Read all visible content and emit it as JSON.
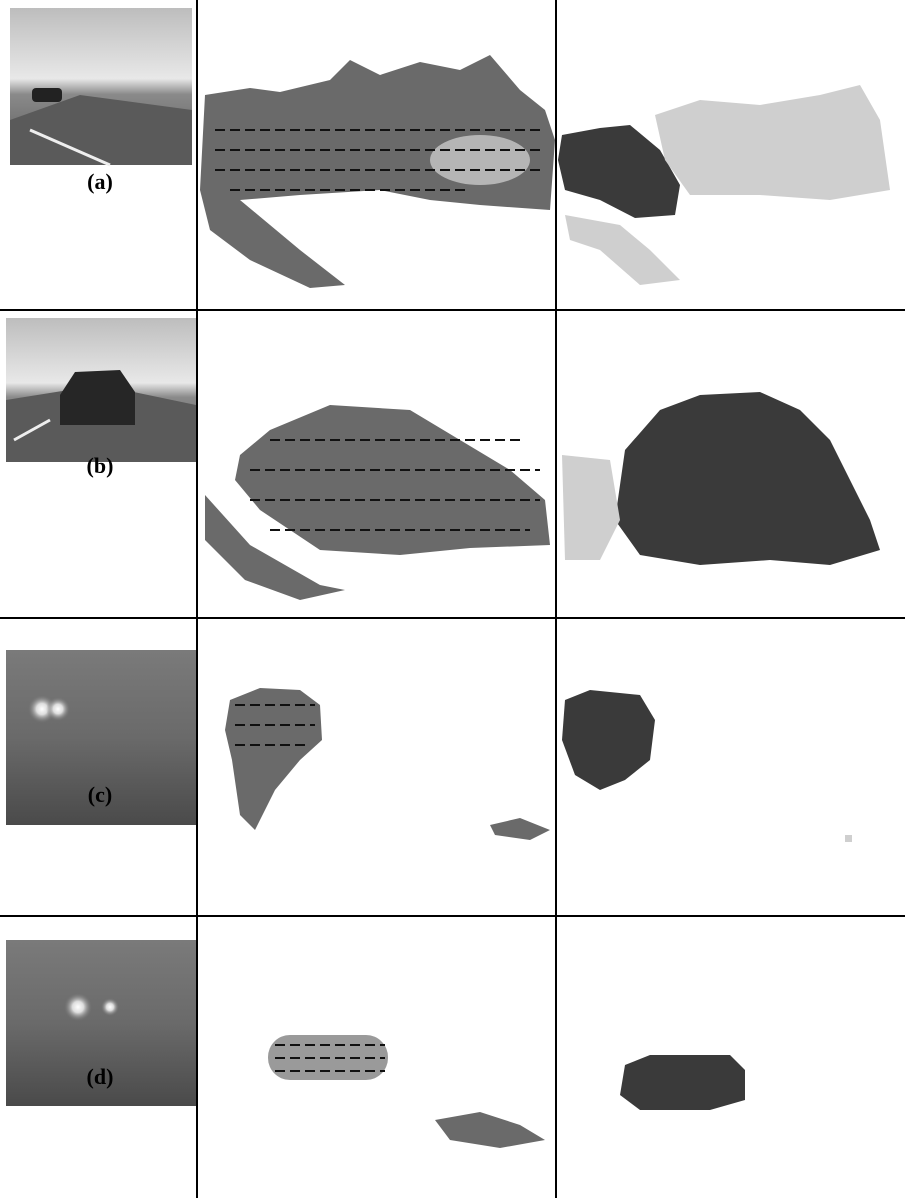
{
  "rows": [
    {
      "label": "(a)"
    },
    {
      "label": "(b)"
    },
    {
      "label": "(c)"
    },
    {
      "label": "(d)"
    }
  ]
}
